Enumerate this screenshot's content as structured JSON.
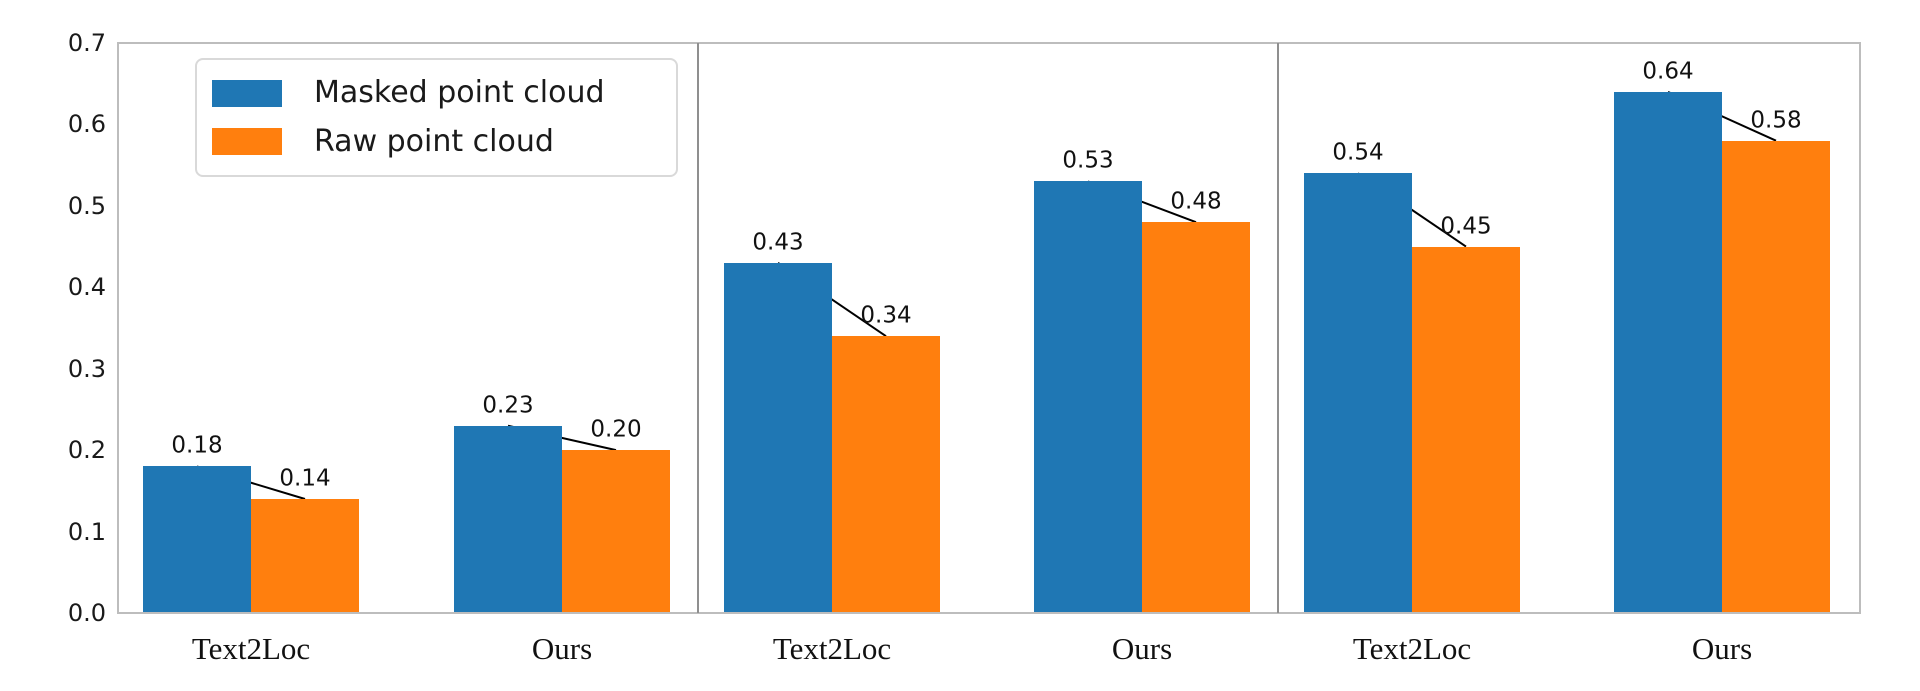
{
  "figure": {
    "background": "#ffffff"
  },
  "chart_data": {
    "type": "bar",
    "title": "",
    "xlabel": "",
    "ylabel": "",
    "categories": [
      "Text2Loc",
      "Ours",
      "Text2Loc",
      "Ours",
      "Text2Loc",
      "Ours"
    ],
    "panel_groups": [
      [
        0,
        1
      ],
      [
        2,
        3
      ],
      [
        4,
        5
      ]
    ],
    "series": [
      {
        "name": "Masked point cloud",
        "color": "#1f77b4",
        "values": [
          0.18,
          0.23,
          0.43,
          0.53,
          0.54,
          0.64
        ]
      },
      {
        "name": "Raw point cloud",
        "color": "#ff7f0e",
        "values": [
          0.14,
          0.2,
          0.34,
          0.48,
          0.45,
          0.58
        ]
      }
    ],
    "bar_value_labels": [
      [
        "0.18",
        "0.23",
        "0.43",
        "0.53",
        "0.54",
        "0.64"
      ],
      [
        "0.14",
        "0.20",
        "0.34",
        "0.48",
        "0.45",
        "0.58"
      ]
    ],
    "ylim": [
      0,
      0.7
    ],
    "yticks": [
      "0.0",
      "0.1",
      "0.2",
      "0.3",
      "0.4",
      "0.5",
      "0.6",
      "0.7"
    ],
    "grid": false,
    "legend": {
      "position": "upper left",
      "entries": [
        "Masked point cloud",
        "Raw point cloud"
      ]
    },
    "annotations": {
      "connector_lines": "black line from top center of each masked bar down to top center of the adjacent raw bar"
    }
  },
  "colors": {
    "axis_frame": "#bdbdbd",
    "panel_divider": "#8f8f8f",
    "annotation_line": "#000000",
    "text": "#1a1a1a"
  }
}
